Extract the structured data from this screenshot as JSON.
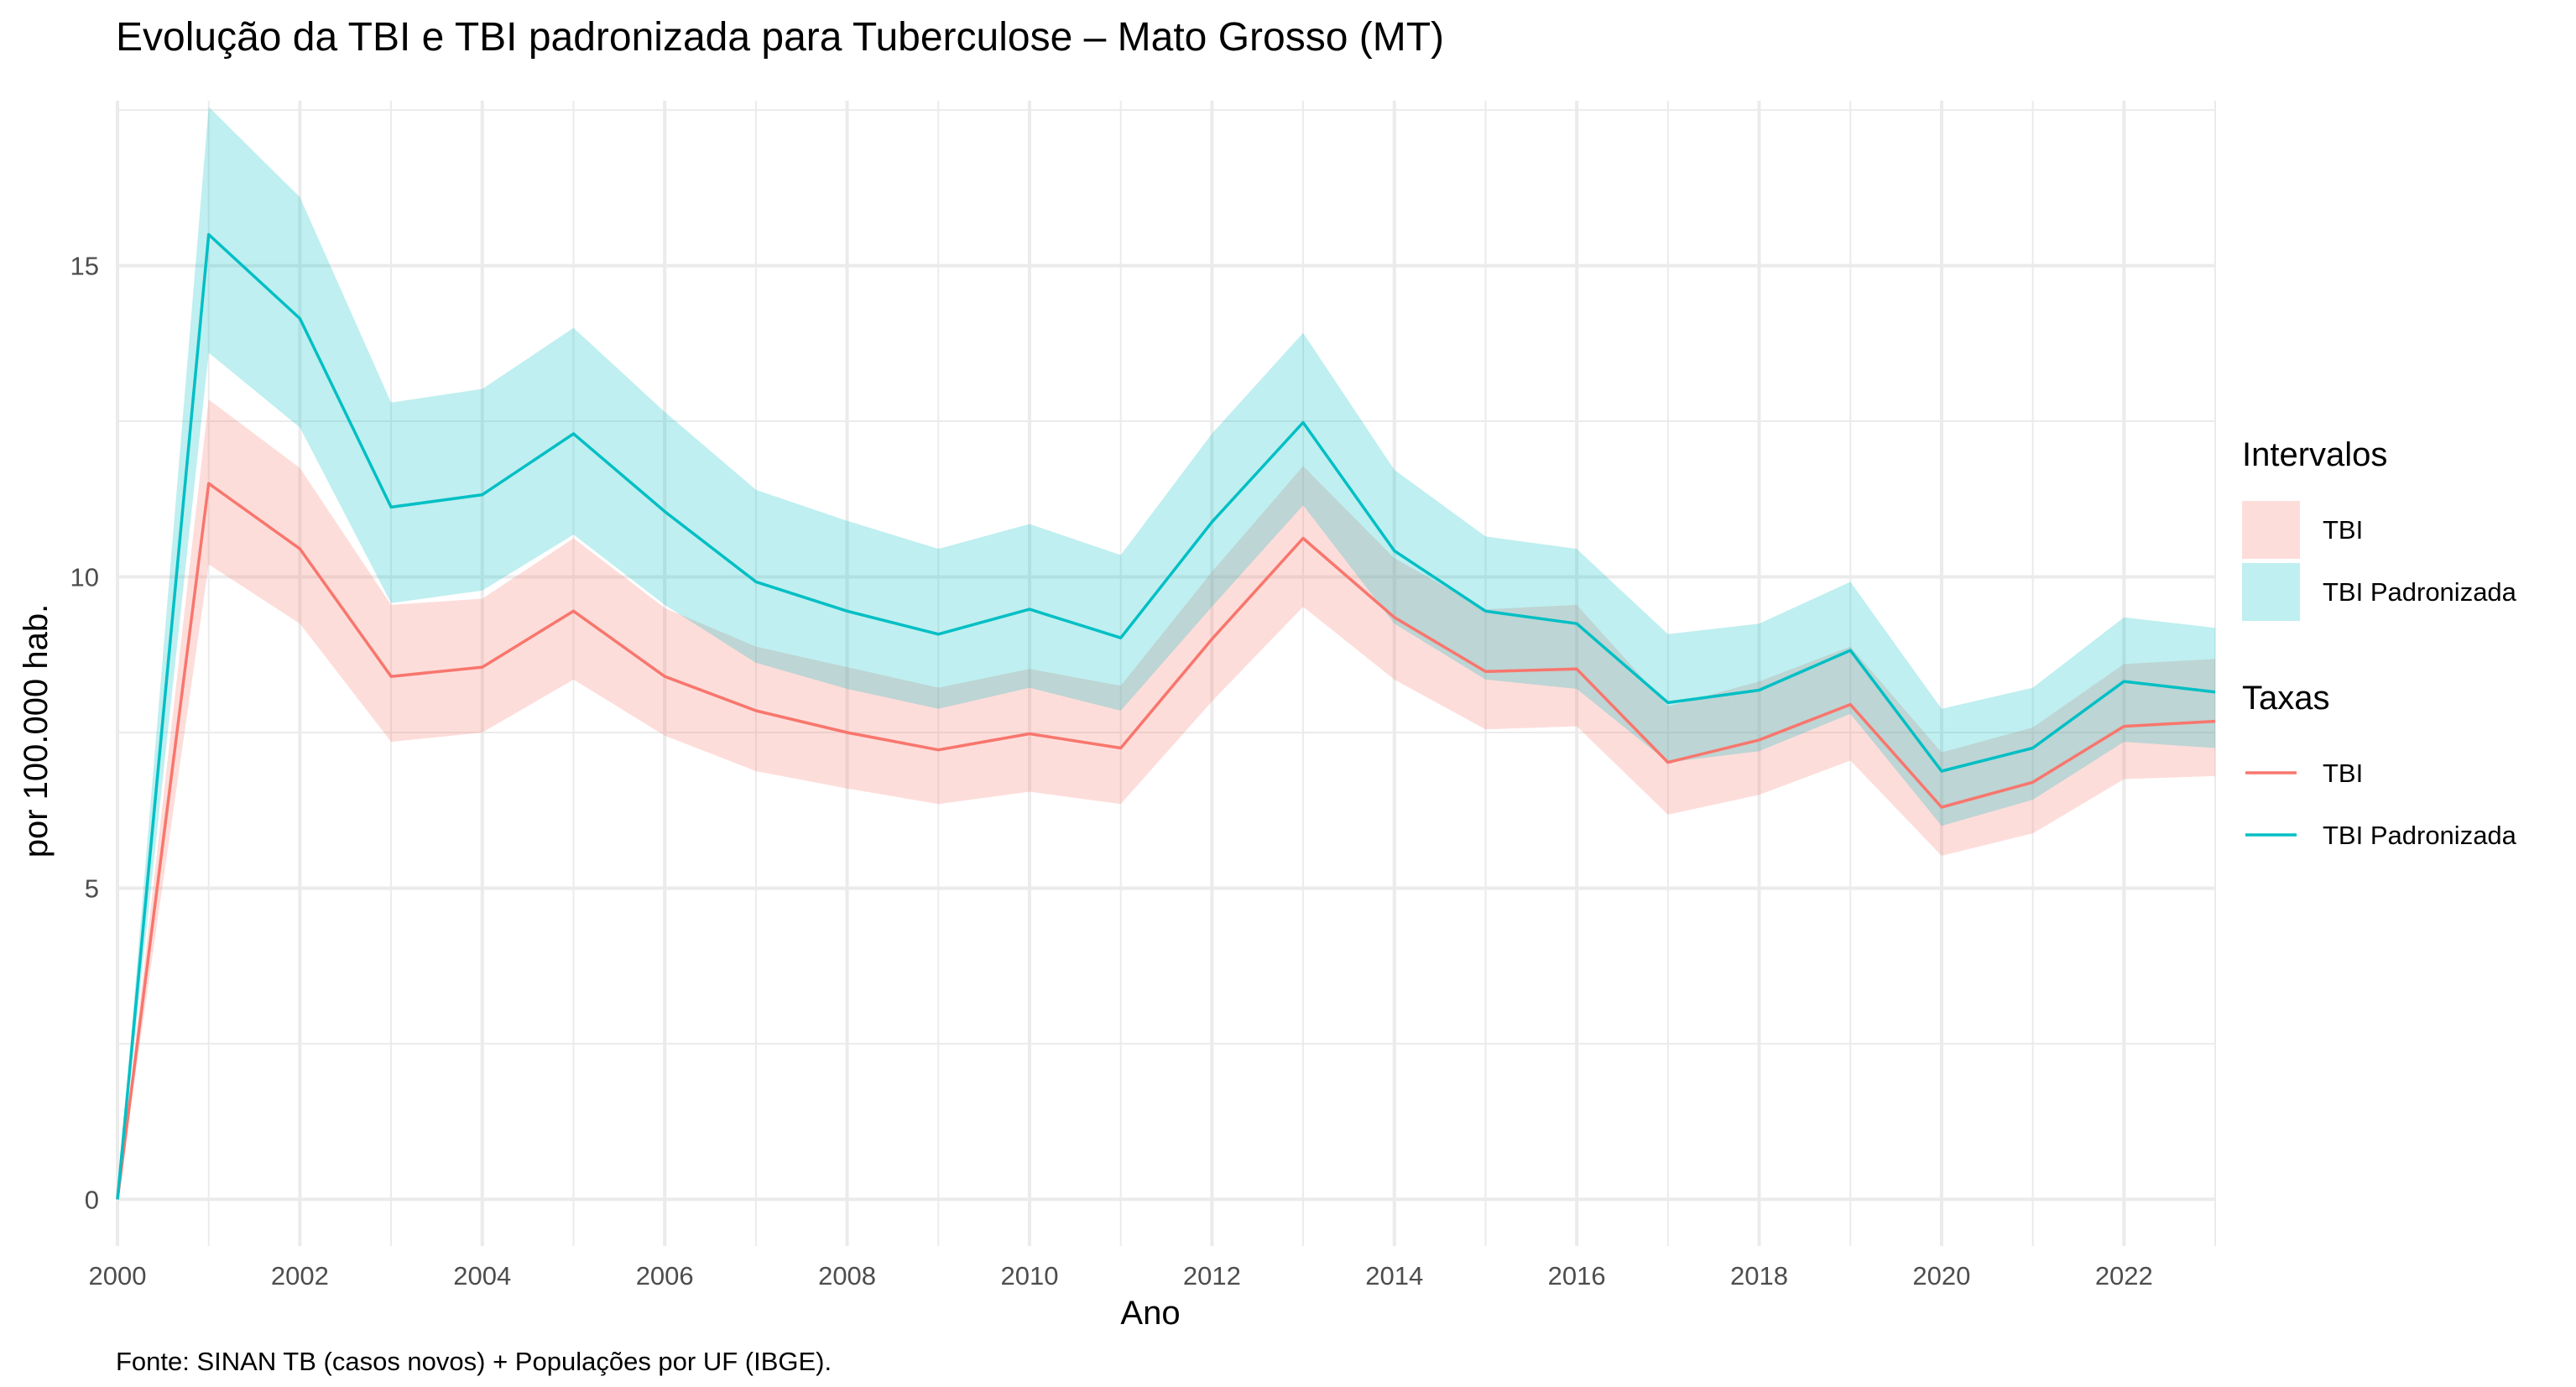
{
  "chart_data": {
    "type": "line",
    "title": "Evolução da TBI e TBI padronizada para Tuberculose – Mato Grosso (MT)",
    "xlabel": "Ano",
    "ylabel": "por 100.000 hab.",
    "caption": "Fonte: SINAN TB (casos novos) + Populações por UF (IBGE).",
    "xlim": [
      2000,
      2023
    ],
    "ylim": [
      0,
      17.5
    ],
    "x_ticks": [
      2000,
      2002,
      2004,
      2006,
      2008,
      2010,
      2012,
      2014,
      2016,
      2018,
      2020,
      2022
    ],
    "y_ticks": [
      0,
      5,
      10,
      15
    ],
    "grid": true,
    "legend_position": "right",
    "x": [
      2000,
      2001,
      2002,
      2003,
      2004,
      2005,
      2006,
      2007,
      2008,
      2009,
      2010,
      2011,
      2012,
      2013,
      2014,
      2015,
      2016,
      2017,
      2018,
      2019,
      2020,
      2021,
      2022,
      2023
    ],
    "series": [
      {
        "name": "TBI",
        "color": "#F8766D",
        "values": [
          0,
          11.5,
          10.45,
          8.4,
          8.55,
          9.45,
          8.4,
          7.85,
          7.5,
          7.22,
          7.48,
          7.25,
          9.0,
          10.62,
          9.35,
          8.48,
          8.52,
          7.02,
          7.38,
          7.95,
          6.3,
          6.7,
          7.6,
          7.68
        ],
        "lower": [
          0,
          10.2,
          9.25,
          7.35,
          7.5,
          8.35,
          7.45,
          6.88,
          6.6,
          6.35,
          6.55,
          6.35,
          8.0,
          9.52,
          8.35,
          7.55,
          7.6,
          6.18,
          6.5,
          7.05,
          5.52,
          5.88,
          6.75,
          6.8
        ],
        "upper": [
          0,
          12.85,
          11.75,
          9.55,
          9.65,
          10.62,
          9.5,
          8.88,
          8.55,
          8.22,
          8.52,
          8.25,
          10.08,
          11.78,
          10.3,
          9.48,
          9.55,
          7.92,
          8.32,
          8.88,
          7.18,
          7.58,
          8.6,
          8.68
        ]
      },
      {
        "name": "TBI Padronizada",
        "color": "#00BFC4",
        "values": [
          0,
          15.5,
          14.15,
          11.12,
          11.32,
          12.3,
          11.05,
          9.92,
          9.45,
          9.08,
          9.48,
          9.02,
          10.88,
          12.48,
          10.42,
          9.45,
          9.25,
          7.98,
          8.18,
          8.82,
          6.88,
          7.25,
          8.32,
          8.15
        ],
        "lower": [
          0,
          13.6,
          12.4,
          9.58,
          9.78,
          10.68,
          9.55,
          8.62,
          8.2,
          7.88,
          8.22,
          7.85,
          9.52,
          11.15,
          9.25,
          8.35,
          8.2,
          7.02,
          7.2,
          7.8,
          6.0,
          6.42,
          7.35,
          7.25
        ],
        "upper": [
          0,
          17.55,
          16.1,
          12.8,
          13.02,
          14.0,
          12.65,
          11.4,
          10.9,
          10.45,
          10.85,
          10.35,
          12.3,
          13.92,
          11.72,
          10.65,
          10.45,
          9.08,
          9.25,
          9.92,
          7.88,
          8.22,
          9.35,
          9.18
        ]
      }
    ],
    "legends": [
      {
        "title": "Intervalos",
        "kind": "fill",
        "entries": [
          {
            "label": "TBI",
            "color": "#F8766D"
          },
          {
            "label": "TBI Padronizada",
            "color": "#00BFC4"
          }
        ]
      },
      {
        "title": "Taxas",
        "kind": "line",
        "entries": [
          {
            "label": "TBI",
            "color": "#F8766D"
          },
          {
            "label": "TBI Padronizada",
            "color": "#00BFC4"
          }
        ]
      }
    ]
  }
}
